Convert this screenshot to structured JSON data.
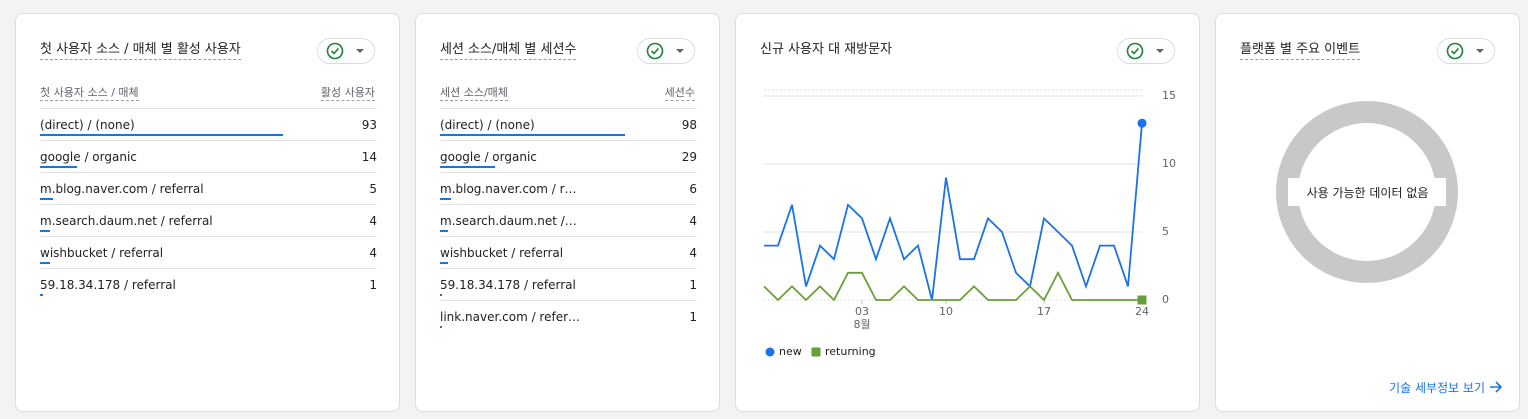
{
  "cards": [
    {
      "title": "첫 사용자 소스 / 매체 별 활성 사용자",
      "columns": [
        "첫 사용자 소스 / 매체",
        "활성 사용자"
      ],
      "rows": [
        [
          "(direct) / (none)",
          93
        ],
        [
          "google / organic",
          14
        ],
        [
          "m.blog.naver.com / referral",
          5
        ],
        [
          "m.search.daum.net / referral",
          4
        ],
        [
          "wishbucket / referral",
          4
        ],
        [
          "59.18.34.178 / referral",
          1
        ]
      ]
    },
    {
      "title": "세션 소스/매체 별 세션수",
      "columns": [
        "세션 소스/매체",
        "세션수"
      ],
      "rows": [
        [
          "(direct) / (none)",
          98
        ],
        [
          "google / organic",
          29
        ],
        [
          "m.blog.naver.com / r…",
          6
        ],
        [
          "m.search.daum.net /…",
          4
        ],
        [
          "wishbucket / referral",
          4
        ],
        [
          "59.18.34.178 / referral",
          1
        ],
        [
          "link.naver.com / refer…",
          1
        ]
      ]
    }
  ],
  "chart_data": {
    "type": "line",
    "title": "신규 사용자 대 재방문자",
    "x": [
      0,
      1,
      2,
      3,
      4,
      5,
      6,
      7,
      8,
      9,
      10,
      11,
      12,
      13,
      14,
      15,
      16,
      17,
      18,
      19,
      20,
      21,
      22,
      23,
      24,
      25,
      26,
      27
    ],
    "xlim": [
      0,
      27
    ],
    "xticks": [
      {
        "value": 7,
        "label": "03"
      },
      {
        "value": 13,
        "label": "10"
      },
      {
        "value": 20,
        "label": "17"
      },
      {
        "value": 27,
        "label": "24"
      }
    ],
    "x_sublabel": "8월",
    "ylim": [
      0,
      15
    ],
    "yticks": [
      0,
      5,
      10,
      15
    ],
    "grid": true,
    "series": [
      {
        "name": "new",
        "color": "#1a73e8",
        "values": [
          4,
          4,
          7,
          1,
          4,
          3,
          7,
          6,
          3,
          6,
          3,
          4,
          0,
          9,
          3,
          3,
          6,
          5,
          2,
          1,
          6,
          5,
          4,
          1,
          4,
          4,
          1,
          13
        ]
      },
      {
        "name": "returning",
        "color": "#689f38",
        "values": [
          1,
          0,
          1,
          0,
          1,
          0,
          2,
          2,
          0,
          0,
          1,
          0,
          0,
          0,
          0,
          1,
          0,
          0,
          0,
          1,
          0,
          2,
          0,
          0,
          0,
          0,
          0,
          0
        ]
      }
    ]
  },
  "platform_card": {
    "title": "플랫폼 별 주요 이벤트",
    "empty_text": "사용 가능한 데이터 없음",
    "link": "기술 세부정보 보기"
  }
}
